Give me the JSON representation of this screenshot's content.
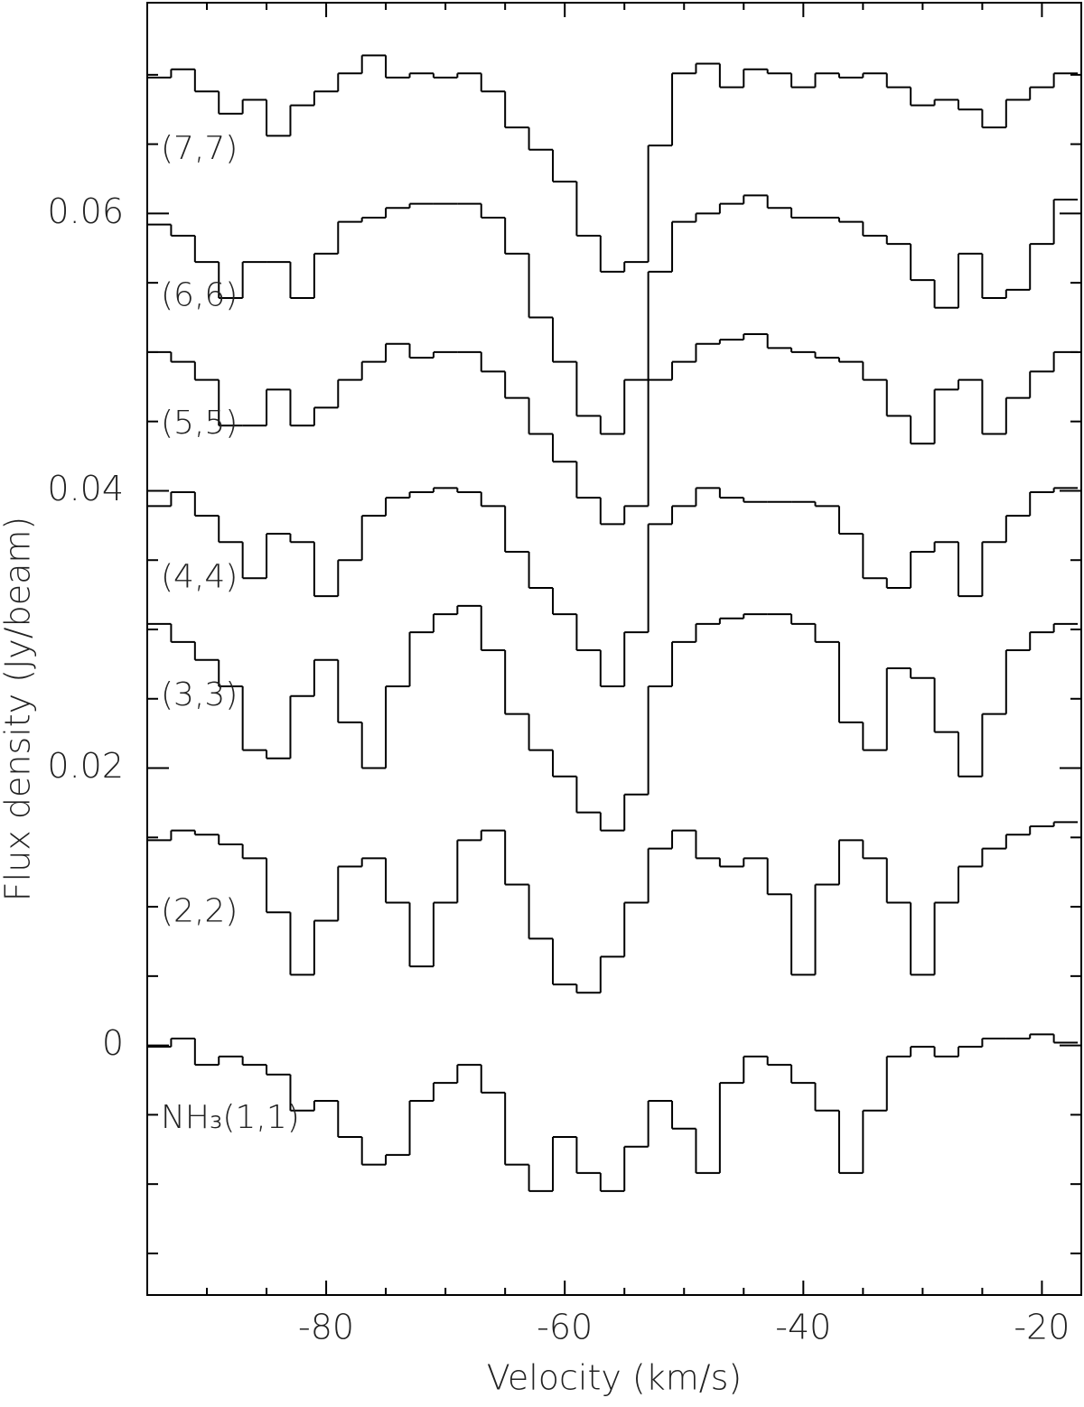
{
  "chart_data": {
    "type": "step",
    "x_label": "Velocity (km/s)",
    "y_label": "Flux density (Jy/beam)",
    "xlim": [
      -95,
      -16.7
    ],
    "ylim": [
      -0.018,
      0.0752
    ],
    "xticks": [
      -80,
      -60,
      -40,
      -20
    ],
    "xminor_ticks": [
      -90,
      -85,
      -75,
      -70,
      -65,
      -55,
      -50,
      -45,
      -35,
      -30,
      -25
    ],
    "yticks": [
      0,
      0.02,
      0.04,
      0.06
    ],
    "yminor_ticks": [
      -0.015,
      -0.01,
      -0.005,
      0.005,
      0.01,
      0.015,
      0.025,
      0.03,
      0.035,
      0.045,
      0.05,
      0.055,
      0.065,
      0.07
    ],
    "color": "#000000",
    "x": [
      -94,
      -92,
      -90,
      -88,
      -86,
      -84,
      -82,
      -80,
      -78,
      -76,
      -74,
      -72,
      -70,
      -68,
      -66,
      -64,
      -62,
      -60,
      -58,
      -56,
      -54,
      -52,
      -50,
      -48,
      -46,
      -44,
      -42,
      -40,
      -38,
      -36,
      -34,
      -32,
      -30,
      -28,
      -26,
      -24,
      -22,
      -20,
      -18
    ],
    "series": [
      {
        "name": "(7,7)",
        "values": [
          0.0698,
          0.0704,
          0.0688,
          0.0672,
          0.0682,
          0.0656,
          0.0678,
          0.0688,
          0.0701,
          0.0714,
          0.0698,
          0.0701,
          0.0698,
          0.0701,
          0.0688,
          0.0662,
          0.0646,
          0.0623,
          0.0584,
          0.0558,
          0.0565,
          0.0649,
          0.0701,
          0.0708,
          0.0691,
          0.0704,
          0.0701,
          0.0691,
          0.0701,
          0.0698,
          0.0701,
          0.0691,
          0.0678,
          0.0682,
          0.0675,
          0.0662,
          0.0682,
          0.0691,
          0.0701
        ]
      },
      {
        "name": "(6,6)",
        "values": [
          0.0592,
          0.0584,
          0.0565,
          0.0539,
          0.0565,
          0.0565,
          0.0539,
          0.0571,
          0.0594,
          0.0597,
          0.0604,
          0.0607,
          0.0607,
          0.0607,
          0.0597,
          0.0571,
          0.0525,
          0.0493,
          0.0454,
          0.0441,
          0.048,
          0.0558,
          0.0594,
          0.06,
          0.0607,
          0.0613,
          0.0604,
          0.0597,
          0.0597,
          0.0594,
          0.0584,
          0.0578,
          0.0552,
          0.0532,
          0.0571,
          0.0539,
          0.0545,
          0.0578,
          0.061
        ]
      },
      {
        "name": "(5,5)",
        "values": [
          0.05,
          0.0493,
          0.048,
          0.0447,
          0.0447,
          0.0473,
          0.0447,
          0.046,
          0.048,
          0.0493,
          0.0506,
          0.0496,
          0.05,
          0.05,
          0.0486,
          0.0467,
          0.0441,
          0.0421,
          0.0395,
          0.0376,
          0.0389,
          0.048,
          0.0493,
          0.0506,
          0.0509,
          0.0513,
          0.0503,
          0.05,
          0.0496,
          0.0493,
          0.048,
          0.0454,
          0.0434,
          0.0473,
          0.048,
          0.0441,
          0.0467,
          0.0486,
          0.05
        ]
      },
      {
        "name": "(4,4)",
        "values": [
          0.0389,
          0.0399,
          0.0382,
          0.0363,
          0.0337,
          0.0369,
          0.0363,
          0.0324,
          0.035,
          0.0382,
          0.0395,
          0.0399,
          0.0402,
          0.0399,
          0.0389,
          0.0356,
          0.033,
          0.0311,
          0.0285,
          0.0259,
          0.0298,
          0.0376,
          0.0389,
          0.0402,
          0.0395,
          0.0392,
          0.0392,
          0.0392,
          0.0389,
          0.0369,
          0.0337,
          0.033,
          0.0356,
          0.0363,
          0.0324,
          0.0363,
          0.0382,
          0.0399,
          0.0402
        ]
      },
      {
        "name": "(3,3)",
        "values": [
          0.0304,
          0.0291,
          0.0278,
          0.0259,
          0.0213,
          0.0207,
          0.0252,
          0.0278,
          0.0233,
          0.02,
          0.0259,
          0.0298,
          0.0311,
          0.0317,
          0.0285,
          0.0239,
          0.0213,
          0.0194,
          0.0168,
          0.0155,
          0.0181,
          0.0259,
          0.0291,
          0.0304,
          0.0308,
          0.0311,
          0.0311,
          0.0304,
          0.0291,
          0.0233,
          0.0213,
          0.0272,
          0.0265,
          0.0226,
          0.0194,
          0.0239,
          0.0285,
          0.0298,
          0.0304
        ]
      },
      {
        "name": "(2,2)",
        "values": [
          0.0148,
          0.0155,
          0.0152,
          0.0145,
          0.0135,
          0.0096,
          0.0051,
          0.009,
          0.0129,
          0.0135,
          0.0103,
          0.0057,
          0.0103,
          0.0148,
          0.0155,
          0.0116,
          0.0077,
          0.0044,
          0.0038,
          0.0064,
          0.0103,
          0.0142,
          0.0155,
          0.0135,
          0.0129,
          0.0135,
          0.0109,
          0.0051,
          0.0116,
          0.0148,
          0.0135,
          0.0103,
          0.0051,
          0.0103,
          0.0129,
          0.0142,
          0.0152,
          0.0158,
          0.0161
        ]
      },
      {
        "name": "NH₃(1,1)",
        "values": [
          -0.0001,
          0.0005,
          -0.0014,
          -0.0008,
          -0.0014,
          -0.0021,
          -0.0047,
          -0.004,
          -0.0066,
          -0.0086,
          -0.0079,
          -0.004,
          -0.0027,
          -0.0014,
          -0.0034,
          -0.0086,
          -0.0105,
          -0.0066,
          -0.0092,
          -0.0105,
          -0.0073,
          -0.004,
          -0.006,
          -0.0092,
          -0.0027,
          -0.0008,
          -0.0014,
          -0.0027,
          -0.0047,
          -0.0092,
          -0.0047,
          -0.0008,
          -0.0001,
          -0.0008,
          -0.0001,
          0.0005,
          0.0005,
          0.0008,
          0.0002
        ]
      }
    ]
  }
}
